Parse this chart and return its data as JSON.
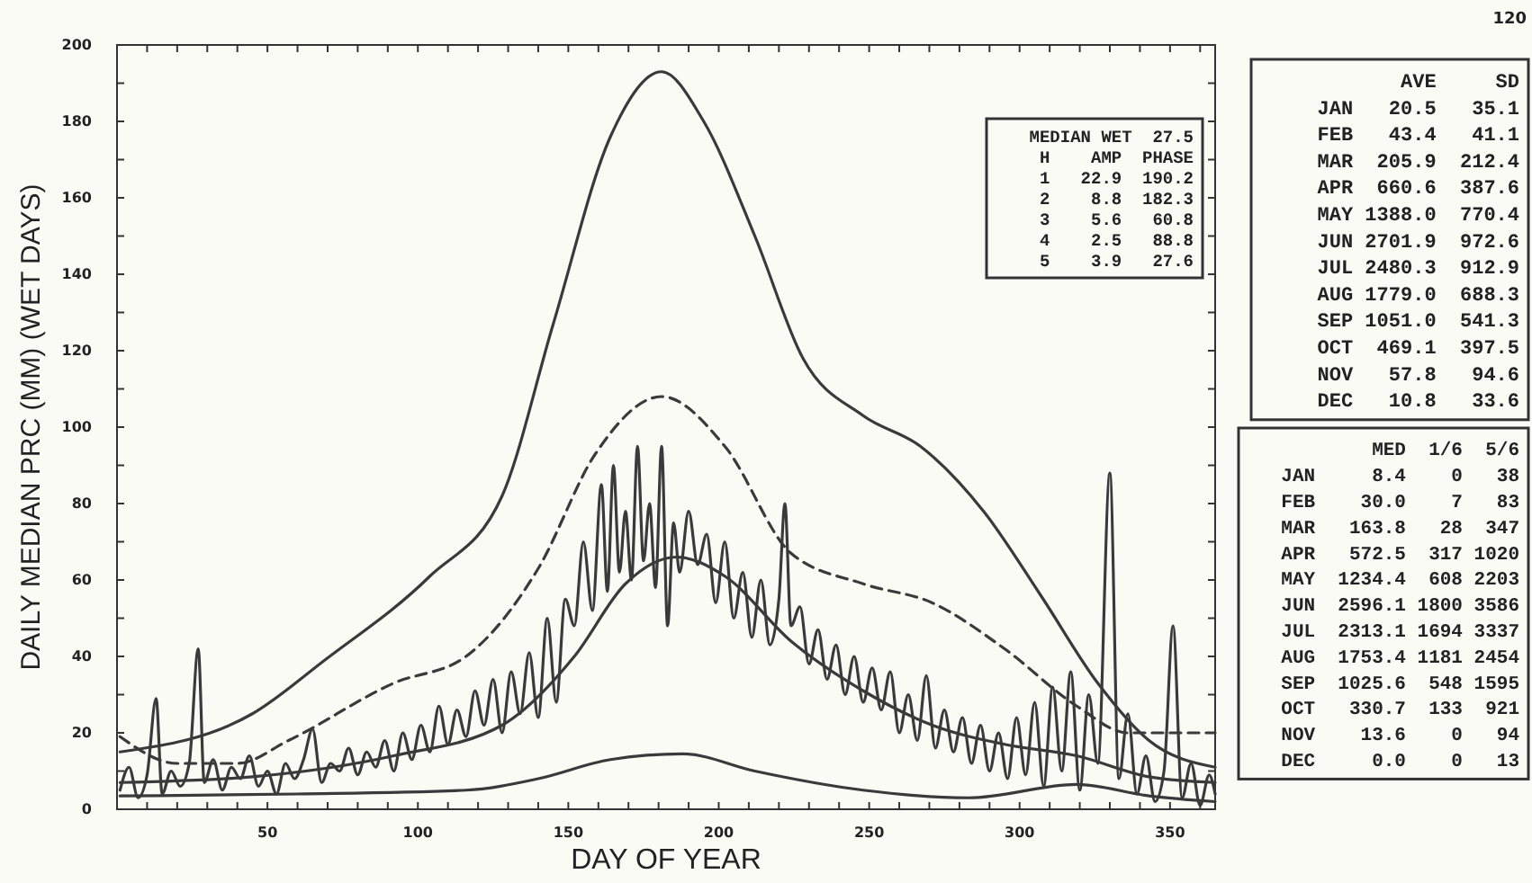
{
  "chart_data": {
    "type": "line",
    "xlabel": "DAY OF YEAR",
    "ylabel": "DAILY MEDIAN PRC (MM) (WET DAYS)",
    "xlim": [
      0,
      365
    ],
    "ylim": [
      0,
      200
    ],
    "xticks": [
      {
        "value": 10,
        "label": null
      },
      {
        "value": 20,
        "label": null
      },
      {
        "value": 30,
        "label": null
      },
      {
        "value": 40,
        "label": null
      },
      50,
      {
        "value": 60,
        "label": null
      },
      {
        "value": 70,
        "label": null
      },
      {
        "value": 80,
        "label": null
      },
      {
        "value": 90,
        "label": null
      },
      100,
      {
        "value": 110,
        "label": null
      },
      {
        "value": 120,
        "label": null
      },
      {
        "value": 130,
        "label": null
      },
      {
        "value": 140,
        "label": null
      },
      150,
      {
        "value": 160,
        "label": null
      },
      {
        "value": 170,
        "label": null
      },
      {
        "value": 180,
        "label": null
      },
      {
        "value": 190,
        "label": null
      },
      200,
      {
        "value": 210,
        "label": null
      },
      {
        "value": 220,
        "label": null
      },
      {
        "value": 230,
        "label": null
      },
      {
        "value": 240,
        "label": null
      },
      250,
      {
        "value": 260,
        "label": null
      },
      {
        "value": 270,
        "label": null
      },
      {
        "value": 280,
        "label": null
      },
      {
        "value": 290,
        "label": null
      },
      300,
      {
        "value": 310,
        "label": null
      },
      {
        "value": 320,
        "label": null
      },
      {
        "value": 330,
        "label": null
      },
      {
        "value": 340,
        "label": null
      },
      350,
      {
        "value": 360,
        "label": null
      }
    ],
    "yticks": [
      0,
      {
        "value": 10,
        "label": null
      },
      20,
      {
        "value": 30,
        "label": null
      },
      40,
      {
        "value": 50,
        "label": null
      },
      60,
      {
        "value": 70,
        "label": null
      },
      80,
      {
        "value": 90,
        "label": null
      },
      100,
      {
        "value": 110,
        "label": null
      },
      120,
      {
        "value": 130,
        "label": null
      },
      140,
      {
        "value": 150,
        "label": null
      },
      160,
      {
        "value": 170,
        "label": null
      },
      180,
      {
        "value": 190,
        "label": null
      },
      200
    ],
    "series": [
      {
        "color": "#3a3a3a",
        "line_style": "solid",
        "x": [
          1,
          45,
          69,
          104,
          128,
          145,
          164,
          181,
          195,
          212,
          228,
          248,
          267,
          288,
          307,
          326,
          343,
          365
        ],
        "values": [
          15,
          25,
          39,
          61,
          82,
          127,
          176,
          193,
          180,
          150,
          118,
          103,
          95,
          78,
          56,
          33,
          18,
          11
        ]
      },
      {
        "color": "#3a3a3a",
        "line_style": "dashed",
        "x": [
          1,
          20,
          40,
          57,
          92,
          116,
          140,
          159,
          181,
          202,
          224,
          248,
          271,
          295,
          319,
          336,
          365
        ],
        "values": [
          19,
          12,
          12,
          18,
          33,
          40,
          63,
          93,
          108,
          95,
          67,
          59,
          54,
          42,
          27,
          20,
          20
        ]
      },
      {
        "color": "#3a3a3a",
        "line_style": "solid",
        "x": [
          1,
          45,
          92,
          128,
          152,
          169,
          186,
          202,
          224,
          248,
          271,
          295,
          319,
          343,
          365
        ],
        "values": [
          7,
          8.5,
          14,
          22,
          40,
          59,
          66,
          61,
          44,
          31,
          22,
          17,
          14,
          8.5,
          7
        ]
      },
      {
        "color": "#3a3a3a",
        "line_style": "solid",
        "x": [
          1,
          60,
          116,
          140,
          164,
          188,
          212,
          248,
          283,
          319,
          343,
          365
        ],
        "values": [
          3.5,
          4,
          5,
          8,
          13,
          14.5,
          10,
          5,
          3,
          6.5,
          3.5,
          2
        ]
      },
      {
        "color": "#3a3a3a",
        "line_style": "solid",
        "x": [
          1,
          4,
          7,
          10,
          13,
          15,
          18,
          21,
          24,
          27,
          29,
          32,
          35,
          38,
          41,
          44,
          47,
          50,
          53,
          56,
          59,
          62,
          65,
          68,
          71,
          74,
          77,
          80,
          83,
          86,
          89,
          92,
          95,
          98,
          101,
          104,
          107,
          110,
          113,
          116,
          119,
          122,
          125,
          128,
          131,
          134,
          137,
          140,
          143,
          146,
          149,
          152,
          155,
          158,
          161,
          163,
          165,
          167,
          169,
          171,
          173,
          175,
          177,
          179,
          181,
          183,
          185,
          187,
          190,
          193,
          196,
          199,
          202,
          205,
          208,
          211,
          214,
          217,
          220,
          222,
          224,
          227,
          230,
          233,
          236,
          239,
          242,
          245,
          248,
          251,
          254,
          257,
          260,
          263,
          266,
          269,
          272,
          275,
          278,
          281,
          284,
          287,
          290,
          293,
          296,
          299,
          302,
          305,
          308,
          311,
          314,
          317,
          320,
          323,
          326,
          330,
          333,
          336,
          339,
          342,
          345,
          348,
          351,
          354,
          357,
          360,
          363,
          365
        ],
        "values": [
          5,
          11,
          3,
          9,
          29,
          4,
          10,
          6,
          12,
          42,
          7,
          13,
          5,
          11,
          8,
          14,
          6,
          10,
          4,
          12,
          8,
          13,
          21,
          7,
          12,
          10,
          16,
          9,
          15,
          11,
          18,
          10,
          20,
          13,
          22,
          15,
          27,
          17,
          26,
          19,
          31,
          22,
          34,
          20,
          36,
          25,
          41,
          24,
          50,
          28,
          55,
          48,
          70,
          52,
          85,
          57,
          90,
          62,
          78,
          60,
          95,
          65,
          80,
          58,
          95,
          48,
          75,
          62,
          78,
          64,
          72,
          54,
          70,
          50,
          62,
          45,
          60,
          43,
          55,
          80,
          48,
          53,
          38,
          47,
          34,
          43,
          30,
          40,
          28,
          37,
          26,
          36,
          20,
          30,
          18,
          35,
          16,
          26,
          15,
          24,
          12,
          22,
          10,
          20,
          8,
          24,
          9,
          28,
          6,
          32,
          10,
          36,
          5,
          30,
          12,
          88,
          8,
          25,
          4,
          14,
          2,
          10,
          48,
          3,
          12,
          1,
          9,
          4
        ]
      }
    ],
    "annotations": [
      "MEDIAN WET  27.5",
      " H    AMP  PHASE",
      " 1   22.9  190.2",
      " 2    8.8  182.3",
      " 3    5.6   60.8",
      " 4    2.5   88.8",
      " 5    3.9   27.6",
      "       AVE     SD",
      "JAN   20.5   35.1",
      "FEB   43.4   41.1",
      "MAR  205.9  212.4",
      "APR  660.6  387.6",
      "MAY 1388.0  770.4",
      "JUN 2701.9  972.6",
      "JUL 2480.3  912.9",
      "AUG 1779.0  688.3",
      "SEP 1051.0  541.3",
      "OCT  469.1  397.5",
      "NOV   57.8   94.6",
      "DEC   10.8   33.6",
      "        MED  1/6  5/6",
      "JAN     8.4    0   38",
      "FEB    30.0    7   83",
      "MAR   163.8   28  347",
      "APR   572.5  317 1020",
      "MAY  1234.4  608 2203",
      "JUN  2596.1 1800 3586",
      "JUL  2313.1 1694 3337",
      "AUG  1753.4 1181 2454",
      "SEP  1025.6  548 1595",
      "OCT   330.7  133  921",
      "NOV    13.6    0   94",
      "DEC     0.0    0   13",
      "120"
    ]
  }
}
